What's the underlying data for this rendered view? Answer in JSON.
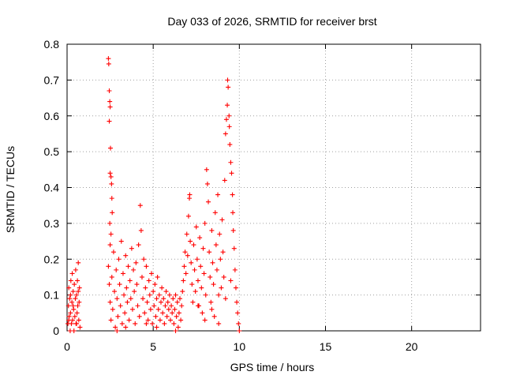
{
  "chart_data": {
    "type": "scatter",
    "title": "Day 033 of 2026, SRMTID for receiver brst",
    "xlabel": "GPS time / hours",
    "ylabel": "SRMTID / TECUs",
    "xlim": [
      0,
      24
    ],
    "ylim": [
      0,
      0.8
    ],
    "xticks": [
      0,
      5,
      10,
      15,
      20
    ],
    "yticks": [
      0,
      0.1,
      0.2,
      0.3,
      0.4,
      0.5,
      0.6,
      0.7,
      0.8
    ],
    "xtick_labels": [
      "0",
      "5",
      "10",
      "15",
      "20"
    ],
    "ytick_labels": [
      "0",
      "0.1",
      "0.2",
      "0.3",
      "0.4",
      "0.5",
      "0.6",
      "0.7",
      "0.8"
    ],
    "grid": true,
    "marker": "+",
    "color": "#ff0000",
    "series": [
      {
        "name": "SRMTID",
        "points": [
          [
            0.05,
            0.02
          ],
          [
            0.08,
            0.07
          ],
          [
            0.1,
            0.12
          ],
          [
            0.12,
            0.04
          ],
          [
            0.15,
            0.09
          ],
          [
            0.18,
            0.0
          ],
          [
            0.2,
            0.05
          ],
          [
            0.22,
            0.14
          ],
          [
            0.25,
            0.02
          ],
          [
            0.28,
            0.08
          ],
          [
            0.3,
            0.16
          ],
          [
            0.32,
            0.03
          ],
          [
            0.35,
            0.11
          ],
          [
            0.38,
            0.06
          ],
          [
            0.4,
            0.0
          ],
          [
            0.42,
            0.13
          ],
          [
            0.45,
            0.04
          ],
          [
            0.48,
            0.09
          ],
          [
            0.5,
            0.17
          ],
          [
            0.52,
            0.02
          ],
          [
            0.55,
            0.1
          ],
          [
            0.58,
            0.05
          ],
          [
            0.6,
            0.14
          ],
          [
            0.62,
            0.07
          ],
          [
            0.65,
            0.19
          ],
          [
            0.68,
            0.03
          ],
          [
            0.7,
            0.08
          ],
          [
            0.72,
            0.12
          ],
          [
            0.75,
            0.01
          ],
          [
            0.1,
            0.03
          ],
          [
            0.2,
            0.1
          ],
          [
            0.35,
            0.07
          ],
          [
            0.55,
            0.02
          ],
          [
            0.65,
            0.11
          ],
          [
            2.4,
            0.76
          ],
          [
            2.42,
            0.745
          ],
          [
            2.45,
            0.67
          ],
          [
            2.48,
            0.64
          ],
          [
            2.5,
            0.625
          ],
          [
            2.45,
            0.585
          ],
          [
            2.52,
            0.51
          ],
          [
            2.5,
            0.44
          ],
          [
            2.55,
            0.43
          ],
          [
            2.58,
            0.41
          ],
          [
            2.6,
            0.37
          ],
          [
            2.48,
            0.3
          ],
          [
            2.55,
            0.27
          ],
          [
            2.62,
            0.33
          ],
          [
            2.5,
            0.24
          ],
          [
            2.4,
            0.18
          ],
          [
            2.45,
            0.13
          ],
          [
            2.5,
            0.08
          ],
          [
            2.55,
            0.03
          ],
          [
            2.6,
            0.15
          ],
          [
            2.65,
            0.06
          ],
          [
            2.7,
            0.22
          ],
          [
            2.75,
            0.11
          ],
          [
            2.8,
            0.01
          ],
          [
            2.85,
            0.17
          ],
          [
            2.9,
            0.09
          ],
          [
            2.95,
            0.04
          ],
          [
            3.0,
            0.2
          ],
          [
            3.05,
            0.13
          ],
          [
            3.1,
            0.07
          ],
          [
            3.15,
            0.25
          ],
          [
            3.2,
            0.02
          ],
          [
            3.25,
            0.16
          ],
          [
            3.3,
            0.1
          ],
          [
            3.35,
            0.05
          ],
          [
            3.4,
            0.21
          ],
          [
            3.45,
            0.12
          ],
          [
            3.5,
            0.08
          ],
          [
            3.55,
            0.18
          ],
          [
            3.6,
            0.03
          ],
          [
            3.65,
            0.14
          ],
          [
            3.7,
            0.09
          ],
          [
            3.75,
            0.23
          ],
          [
            3.8,
            0.06
          ],
          [
            3.85,
            0.17
          ],
          [
            3.9,
            0.11
          ],
          [
            3.95,
            0.02
          ],
          [
            4.0,
            0.19
          ],
          [
            4.05,
            0.13
          ],
          [
            4.1,
            0.07
          ],
          [
            4.15,
            0.24
          ],
          [
            4.2,
            0.04
          ],
          [
            4.25,
            0.35
          ],
          [
            4.3,
            0.28
          ],
          [
            4.35,
            0.15
          ],
          [
            4.4,
            0.09
          ],
          [
            4.45,
            0.2
          ],
          [
            4.5,
            0.05
          ],
          [
            4.55,
            0.12
          ],
          [
            4.6,
            0.18
          ],
          [
            4.65,
            0.08
          ],
          [
            4.7,
            0.03
          ],
          [
            4.75,
            0.14
          ],
          [
            4.8,
            0.1
          ],
          [
            4.85,
            0.06
          ],
          [
            4.9,
            0.16
          ],
          [
            4.95,
            0.02
          ],
          [
            5.0,
            0.11
          ],
          [
            5.05,
            0.07
          ],
          [
            5.1,
            0.13
          ],
          [
            5.15,
            0.04
          ],
          [
            5.2,
            0.09
          ],
          [
            5.25,
            0.15
          ],
          [
            5.3,
            0.06
          ],
          [
            5.35,
            0.1
          ],
          [
            5.4,
            0.03
          ],
          [
            5.45,
            0.08
          ],
          [
            5.5,
            0.12
          ],
          [
            5.55,
            0.05
          ],
          [
            5.6,
            0.09
          ],
          [
            5.65,
            0.02
          ],
          [
            5.7,
            0.07
          ],
          [
            5.75,
            0.11
          ],
          [
            5.8,
            0.04
          ],
          [
            5.85,
            0.08
          ],
          [
            5.9,
            0.06
          ],
          [
            5.95,
            0.1
          ],
          [
            6.0,
            0.03
          ],
          [
            6.05,
            0.07
          ],
          [
            6.1,
            0.05
          ],
          [
            6.15,
            0.09
          ],
          [
            6.2,
            0.02
          ],
          [
            6.25,
            0.06
          ],
          [
            6.3,
            0.1
          ],
          [
            6.35,
            0.04
          ],
          [
            6.4,
            0.08
          ],
          [
            6.45,
            0.01
          ],
          [
            6.5,
            0.05
          ],
          [
            6.55,
            0.09
          ],
          [
            6.6,
            0.03
          ],
          [
            6.65,
            0.07
          ],
          [
            6.7,
            0.11
          ],
          [
            6.75,
            0.14
          ],
          [
            6.8,
            0.18
          ],
          [
            6.85,
            0.22
          ],
          [
            6.9,
            0.16
          ],
          [
            6.95,
            0.27
          ],
          [
            7.0,
            0.21
          ],
          [
            7.05,
            0.32
          ],
          [
            7.1,
            0.37
          ],
          [
            7.12,
            0.38
          ],
          [
            7.15,
            0.25
          ],
          [
            7.2,
            0.19
          ],
          [
            7.25,
            0.13
          ],
          [
            7.3,
            0.08
          ],
          [
            7.35,
            0.24
          ],
          [
            7.4,
            0.17
          ],
          [
            7.45,
            0.11
          ],
          [
            7.5,
            0.29
          ],
          [
            7.55,
            0.2
          ],
          [
            7.6,
            0.14
          ],
          [
            7.65,
            0.07
          ],
          [
            7.7,
            0.26
          ],
          [
            7.75,
            0.18
          ],
          [
            7.8,
            0.12
          ],
          [
            7.85,
            0.05
          ],
          [
            7.9,
            0.23
          ],
          [
            7.95,
            0.16
          ],
          [
            8.0,
            0.3
          ],
          [
            8.05,
            0.1
          ],
          [
            8.1,
            0.45
          ],
          [
            8.15,
            0.41
          ],
          [
            8.2,
            0.36
          ],
          [
            8.25,
            0.22
          ],
          [
            8.3,
            0.15
          ],
          [
            8.35,
            0.08
          ],
          [
            8.4,
            0.28
          ],
          [
            8.45,
            0.19
          ],
          [
            8.5,
            0.13
          ],
          [
            8.55,
            0.04
          ],
          [
            8.6,
            0.33
          ],
          [
            8.65,
            0.24
          ],
          [
            8.7,
            0.17
          ],
          [
            8.75,
            0.38
          ],
          [
            8.8,
            0.1
          ],
          [
            8.85,
            0.27
          ],
          [
            8.9,
            0.2
          ],
          [
            8.95,
            0.12
          ],
          [
            9.0,
            0.31
          ],
          [
            9.05,
            0.22
          ],
          [
            9.1,
            0.15
          ],
          [
            9.15,
            0.42
          ],
          [
            9.2,
            0.55
          ],
          [
            9.25,
            0.59
          ],
          [
            9.3,
            0.63
          ],
          [
            9.32,
            0.7
          ],
          [
            9.35,
            0.68
          ],
          [
            9.4,
            0.6
          ],
          [
            9.42,
            0.57
          ],
          [
            9.45,
            0.52
          ],
          [
            9.5,
            0.47
          ],
          [
            9.55,
            0.44
          ],
          [
            9.6,
            0.38
          ],
          [
            9.62,
            0.33
          ],
          [
            9.65,
            0.28
          ],
          [
            9.7,
            0.23
          ],
          [
            9.75,
            0.17
          ],
          [
            9.8,
            0.12
          ],
          [
            9.85,
            0.08
          ],
          [
            9.9,
            0.05
          ],
          [
            9.95,
            0.02
          ],
          [
            10.0,
            0.0
          ],
          [
            7.6,
            0.07
          ],
          [
            8.0,
            0.03
          ],
          [
            8.4,
            0.06
          ],
          [
            8.8,
            0.02
          ],
          [
            9.2,
            0.09
          ],
          [
            9.5,
            0.14
          ],
          [
            6.3,
            0.0
          ],
          [
            5.2,
            0.01
          ],
          [
            4.6,
            0.02
          ],
          [
            3.4,
            0.01
          ],
          [
            2.9,
            0.0
          ]
        ]
      }
    ]
  }
}
